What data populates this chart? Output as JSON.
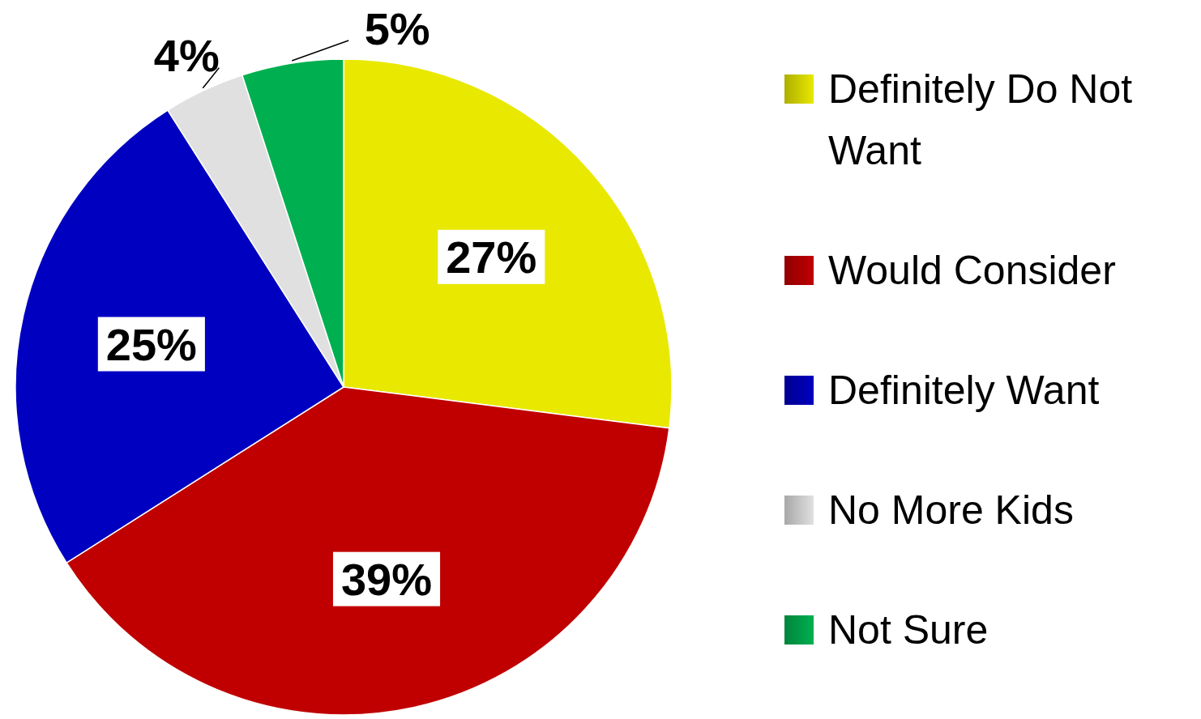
{
  "chart_data": {
    "type": "pie",
    "categories": [
      "Definitely Do Not Want",
      "Would Consider",
      "Definitely Want",
      "No More Kids",
      "Not Sure"
    ],
    "values": [
      27,
      39,
      25,
      4,
      5
    ],
    "colors": [
      "#e8e800",
      "#c00000",
      "#0000c0",
      "#e0e0e0",
      "#00b050"
    ],
    "value_labels": [
      "27%",
      "39%",
      "25%",
      "4%",
      "5%"
    ],
    "legend": "right"
  }
}
